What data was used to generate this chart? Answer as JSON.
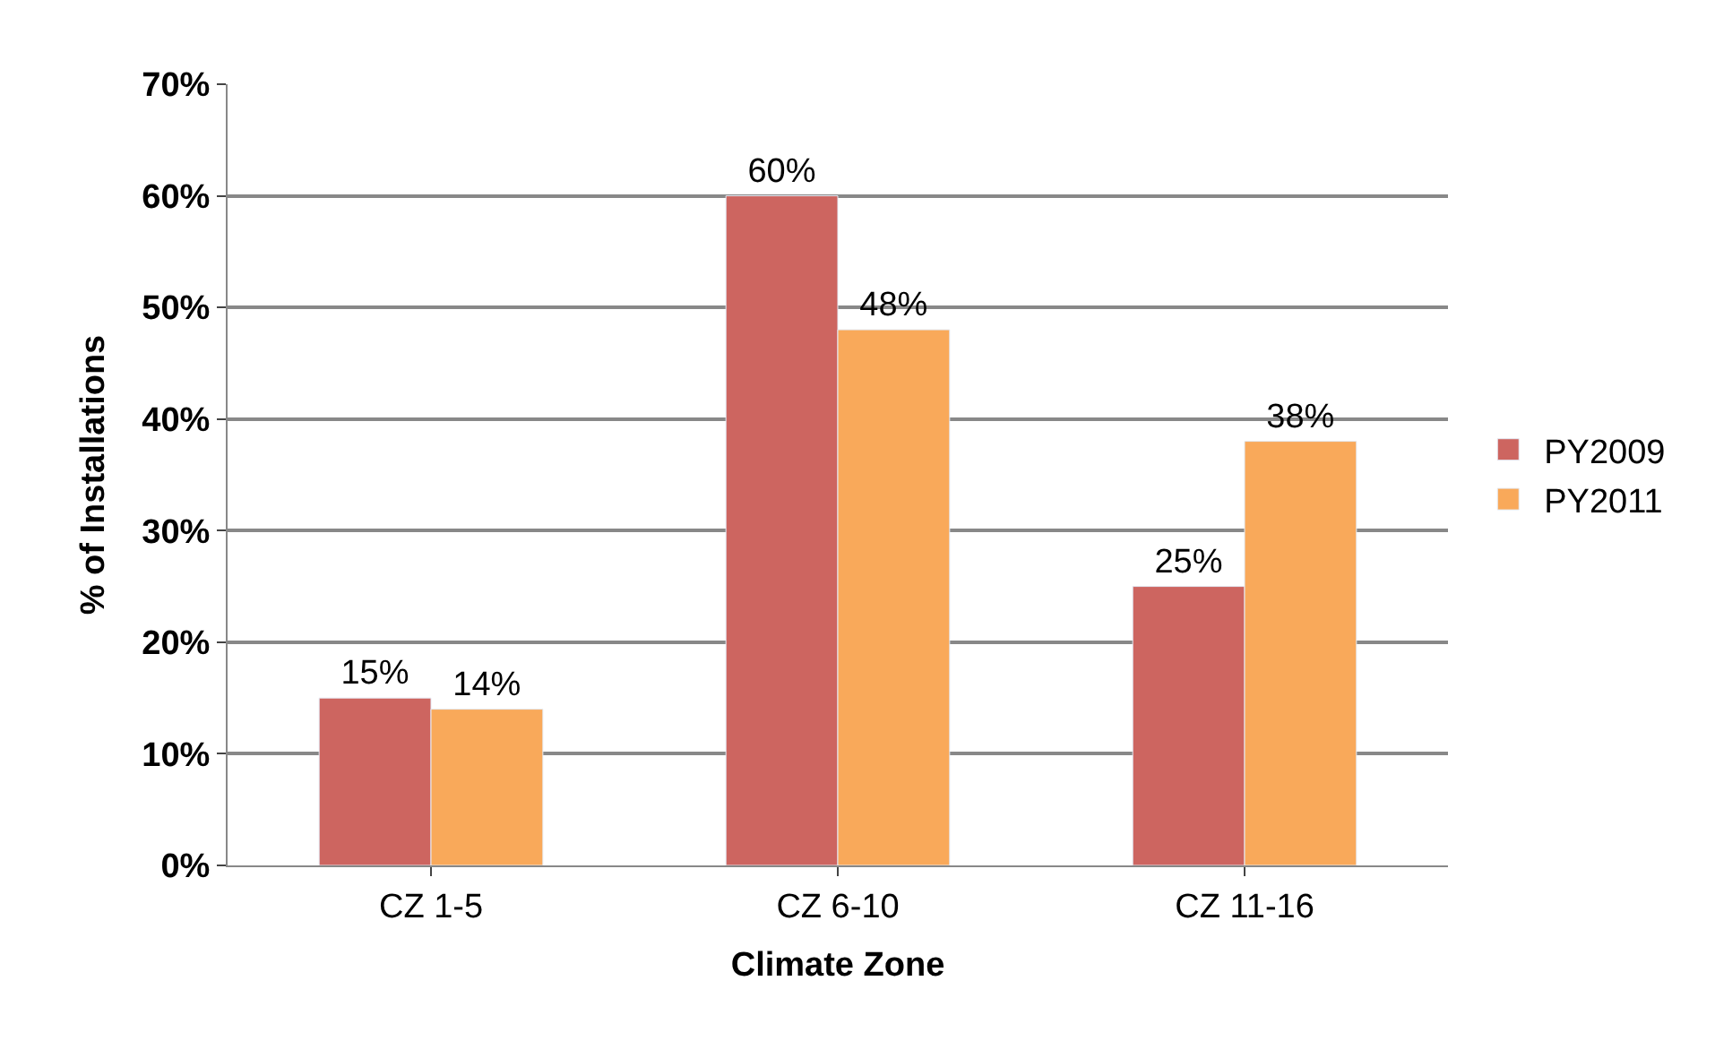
{
  "chart_data": {
    "type": "bar",
    "xlabel": "Climate Zone",
    "ylabel": "% of Installations",
    "categories": [
      "CZ 1-5",
      "CZ 6-10",
      "CZ 11-16"
    ],
    "series": [
      {
        "name": "PY2009",
        "color": "#cd6560",
        "values": [
          15,
          60,
          25
        ],
        "value_labels": [
          "15%",
          "60%",
          "25%"
        ]
      },
      {
        "name": "PY2011",
        "color": "#f9a95a",
        "values": [
          14,
          48,
          38
        ],
        "value_labels": [
          "14%",
          "48%",
          "38%"
        ]
      }
    ],
    "ylim": [
      0,
      70
    ],
    "yticks": [
      {
        "value": 0,
        "label": "0%"
      },
      {
        "value": 10,
        "label": "10%"
      },
      {
        "value": 20,
        "label": "20%"
      },
      {
        "value": 30,
        "label": "30%"
      },
      {
        "value": 40,
        "label": "40%"
      },
      {
        "value": 50,
        "label": "50%"
      },
      {
        "value": 60,
        "label": "60%"
      },
      {
        "value": 70,
        "label": "70%"
      }
    ],
    "grid": "y",
    "legend": "right"
  }
}
